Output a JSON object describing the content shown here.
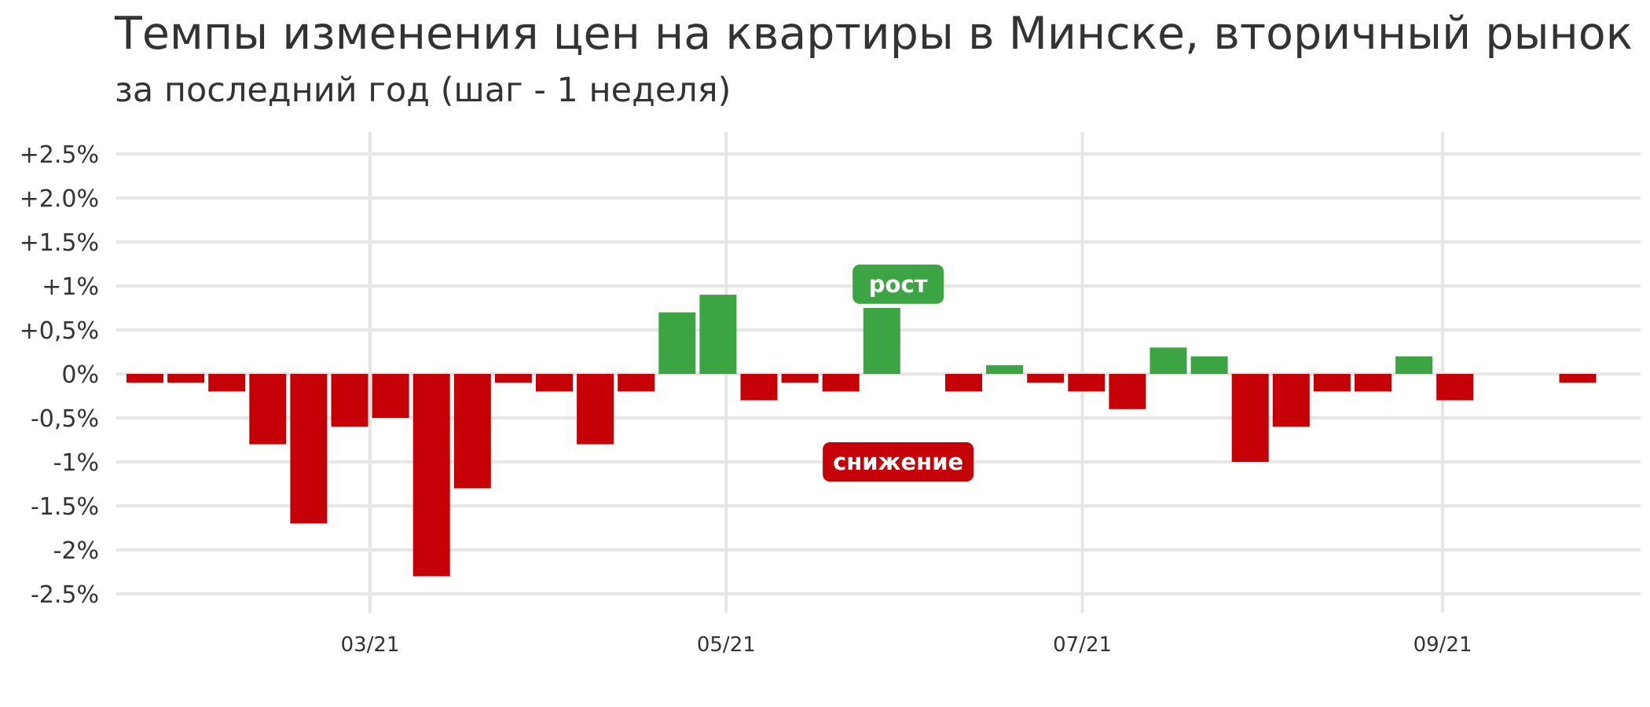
{
  "chart_data": {
    "type": "bar",
    "title": "Темпы изменения цен на квартиры в Минске, вторичный рынок",
    "subtitle": "за последний год (шаг - 1 неделя)",
    "xlabel": "",
    "ylabel": "",
    "ylim": [
      -2.5,
      2.5
    ],
    "y_ticks": [
      {
        "value": 2.5,
        "label": "+2.5%"
      },
      {
        "value": 2.0,
        "label": "+2.0%"
      },
      {
        "value": 1.5,
        "label": "+1.5%"
      },
      {
        "value": 1.0,
        "label": "+1%"
      },
      {
        "value": 0.5,
        "label": "+0,5%"
      },
      {
        "value": 0.0,
        "label": "0%"
      },
      {
        "value": -0.5,
        "label": "-0,5%"
      },
      {
        "value": -1.0,
        "label": "-1%"
      },
      {
        "value": -1.5,
        "label": "-1.5%"
      },
      {
        "value": -2.0,
        "label": "-2%"
      },
      {
        "value": -2.5,
        "label": "-2.5%"
      }
    ],
    "x_ticks": [
      {
        "week_index": 5.5,
        "label": "03/21"
      },
      {
        "week_index": 14.2,
        "label": "05/21"
      },
      {
        "week_index": 22.9,
        "label": "07/21"
      },
      {
        "week_index": 31.7,
        "label": "09/21"
      }
    ],
    "values": [
      -0.1,
      -0.1,
      -0.2,
      -0.8,
      -1.7,
      -0.6,
      -0.5,
      -2.3,
      -1.3,
      -0.1,
      -0.2,
      -0.8,
      -0.2,
      0.7,
      0.9,
      -0.3,
      -0.1,
      -0.2,
      0.75,
      0.0,
      -0.2,
      0.1,
      -0.1,
      -0.2,
      -0.4,
      0.3,
      0.2,
      -1.0,
      -0.6,
      -0.2,
      -0.2,
      0.2,
      -0.3,
      0.0,
      0.0,
      -0.1
    ],
    "grid": true,
    "colors": {
      "increase": "#3da444",
      "decrease": "#c50006",
      "grid": "#e6e6e6",
      "text": "#333333"
    },
    "annotations": [
      {
        "label": "рост",
        "week_index": 18.4,
        "value": 1.02,
        "color": "#3da444"
      },
      {
        "label": "снижение",
        "week_index": 18.4,
        "value": -1.0,
        "color": "#c50006"
      }
    ]
  }
}
